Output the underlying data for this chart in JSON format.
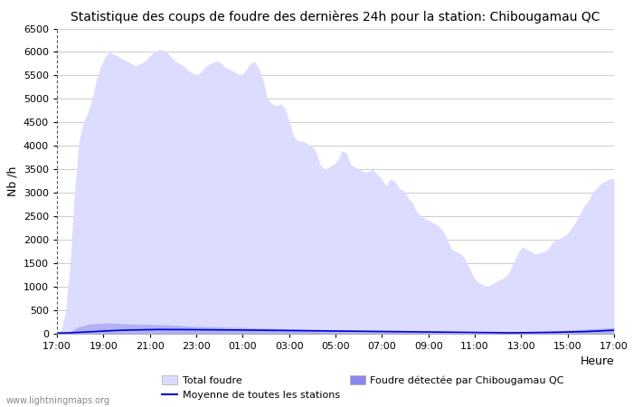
{
  "title": "Statistique des coups de foudre des dernières 24h pour la station: Chibougamau QC",
  "ylabel": "Nb /h",
  "xlabel_right": "Heure",
  "watermark": "www.lightningmaps.org",
  "ylim": [
    0,
    6500
  ],
  "yticks": [
    0,
    500,
    1000,
    1500,
    2000,
    2500,
    3000,
    3500,
    4000,
    4500,
    5000,
    5500,
    6000,
    6500
  ],
  "xtick_labels": [
    "17:00",
    "19:00",
    "21:00",
    "23:00",
    "01:00",
    "03:00",
    "05:00",
    "07:00",
    "09:00",
    "11:00",
    "13:00",
    "15:00",
    "17:00"
  ],
  "color_total": "#dcdcff",
  "color_local": "#8888ee",
  "color_mean": "#0000dd",
  "legend_total": "Total foudre",
  "legend_mean": "Moyenne de toutes les stations",
  "legend_local": "Foudre détectée par Chibougamau QC",
  "total_foudre": [
    0,
    100,
    500,
    1500,
    3000,
    4100,
    4500,
    4700,
    5000,
    5400,
    5700,
    5900,
    6000,
    5950,
    5900,
    5850,
    5800,
    5750,
    5700,
    5750,
    5800,
    5900,
    6000,
    6050,
    6050,
    6000,
    5900,
    5800,
    5750,
    5700,
    5600,
    5550,
    5500,
    5600,
    5700,
    5750,
    5800,
    5800,
    5700,
    5650,
    5600,
    5550,
    5500,
    5600,
    5750,
    5800,
    5650,
    5400,
    5000,
    4900,
    4850,
    4900,
    4800,
    4500,
    4200,
    4100,
    4100,
    4050,
    4000,
    3900,
    3600,
    3500,
    3550,
    3600,
    3700,
    3900,
    3850,
    3600,
    3550,
    3500,
    3450,
    3450,
    3500,
    3400,
    3300,
    3150,
    3300,
    3250,
    3100,
    3050,
    2900,
    2800,
    2600,
    2500,
    2450,
    2400,
    2350,
    2300,
    2200,
    2000,
    1800,
    1750,
    1700,
    1600,
    1400,
    1200,
    1100,
    1050,
    1000,
    1050,
    1100,
    1150,
    1200,
    1300,
    1500,
    1700,
    1850,
    1800,
    1750,
    1700,
    1720,
    1750,
    1800,
    1950,
    2000,
    2050,
    2100,
    2200,
    2350,
    2500,
    2700,
    2800,
    3000,
    3100,
    3200,
    3250,
    3300,
    3300
  ],
  "local_foudre": [
    0,
    5,
    20,
    50,
    100,
    150,
    170,
    200,
    210,
    215,
    220,
    225,
    230,
    225,
    220,
    215,
    210,
    210,
    205,
    205,
    200,
    200,
    195,
    195,
    190,
    190,
    185,
    180,
    175,
    170,
    165,
    160,
    155,
    155,
    152,
    150,
    148,
    145,
    142,
    140,
    138,
    135,
    132,
    130,
    128,
    125,
    122,
    120,
    118,
    115,
    112,
    110,
    108,
    105,
    102,
    100,
    98,
    95,
    92,
    90,
    88,
    85,
    83,
    80,
    78,
    78,
    75,
    72,
    70,
    68,
    65,
    63,
    60,
    58,
    55,
    52,
    50,
    48,
    45,
    42,
    40,
    38,
    35,
    32,
    30,
    28,
    26,
    24,
    22,
    20,
    18,
    16,
    15,
    13,
    12,
    10,
    8,
    8,
    8,
    10,
    12,
    15,
    18,
    20,
    25,
    30,
    35,
    38,
    40,
    42,
    45,
    48,
    52,
    58,
    62,
    68,
    72,
    78,
    85,
    90,
    95,
    100,
    105,
    110,
    115,
    120,
    125,
    130
  ],
  "mean_line": [
    15,
    15,
    18,
    20,
    25,
    30,
    35,
    40,
    45,
    50,
    55,
    60,
    65,
    68,
    72,
    75,
    78,
    80,
    82,
    83,
    85,
    87,
    88,
    90,
    90,
    90,
    90,
    90,
    88,
    88,
    87,
    86,
    85,
    85,
    84,
    84,
    83,
    82,
    82,
    81,
    80,
    80,
    79,
    78,
    78,
    77,
    76,
    75,
    74,
    73,
    72,
    71,
    70,
    69,
    68,
    67,
    66,
    65,
    64,
    63,
    62,
    61,
    60,
    59,
    58,
    57,
    56,
    55,
    54,
    53,
    52,
    51,
    50,
    49,
    48,
    47,
    46,
    45,
    44,
    43,
    42,
    41,
    40,
    39,
    38,
    37,
    36,
    35,
    34,
    33,
    32,
    31,
    30,
    29,
    28,
    27,
    26,
    25,
    24,
    23,
    22,
    21,
    20,
    20,
    20,
    21,
    22,
    23,
    24,
    25,
    26,
    27,
    28,
    30,
    32,
    34,
    36,
    38,
    40,
    42,
    45,
    48,
    52,
    56,
    60,
    65,
    70,
    75
  ]
}
